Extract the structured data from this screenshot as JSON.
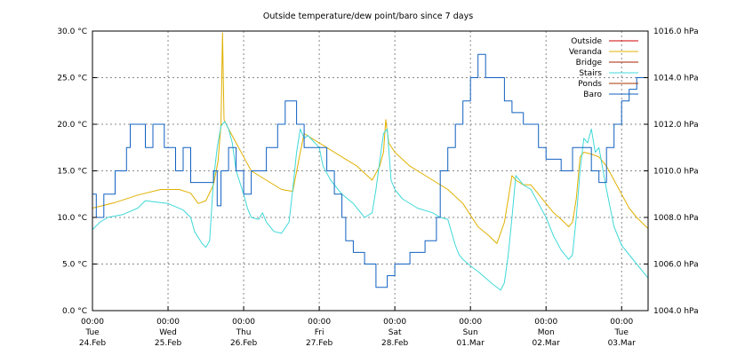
{
  "chart_data": {
    "type": "line",
    "title": "Outside temperature/dew point/baro since 7 days",
    "y_left": {
      "min": 0,
      "max": 30,
      "ticks": [
        "0.0 °C",
        "5.0 °C",
        "10.0 °C",
        "15.0 °C",
        "20.0 °C",
        "25.0 °C",
        "30.0 °C"
      ],
      "tick_values": [
        0,
        5,
        10,
        15,
        20,
        25,
        30
      ]
    },
    "y_right": {
      "min": 1004,
      "max": 1016,
      "ticks": [
        "1004.0 hPa",
        "1006.0 hPa",
        "1008.0 hPa",
        "1010.0 hPa",
        "1012.0 hPa",
        "1014.0 hPa",
        "1016.0 hPa"
      ],
      "tick_values": [
        1004,
        1006,
        1008,
        1010,
        1012,
        1014,
        1016
      ]
    },
    "x_axis": {
      "min": 0,
      "max": 7.35,
      "ticks": [
        {
          "t": 0,
          "time": "00:00",
          "day": "Tue",
          "date": "24.Feb"
        },
        {
          "t": 1,
          "time": "00:00",
          "day": "Wed",
          "date": "25.Feb"
        },
        {
          "t": 2,
          "time": "00:00",
          "day": "Thu",
          "date": "26.Feb"
        },
        {
          "t": 3,
          "time": "00:00",
          "day": "Fri",
          "date": "27.Feb"
        },
        {
          "t": 4,
          "time": "00:00",
          "day": "Sat",
          "date": "28.Feb"
        },
        {
          "t": 5,
          "time": "00:00",
          "day": "Sun",
          "date": "01.Mar"
        },
        {
          "t": 6,
          "time": "00:00",
          "day": "Mon",
          "date": "02.Mar"
        },
        {
          "t": 7,
          "time": "00:00",
          "day": "Tue",
          "date": "03.Mar"
        }
      ]
    },
    "grid": true,
    "legend_position": "top-right",
    "series": [
      {
        "name": "Outside",
        "color": "#d00000",
        "axis": "left",
        "points": []
      },
      {
        "name": "Veranda",
        "color": "#e0b000",
        "axis": "left",
        "points": [
          [
            0,
            11.0
          ],
          [
            0.3,
            11.6
          ],
          [
            0.6,
            12.4
          ],
          [
            0.9,
            13.0
          ],
          [
            1.15,
            13.0
          ],
          [
            1.3,
            12.6
          ],
          [
            1.4,
            11.5
          ],
          [
            1.5,
            11.8
          ],
          [
            1.6,
            13.5
          ],
          [
            1.66,
            16.0
          ],
          [
            1.7,
            20.0
          ],
          [
            1.72,
            29.8
          ],
          [
            1.74,
            20.5
          ],
          [
            1.8,
            19.5
          ],
          [
            1.9,
            18.0
          ],
          [
            2.0,
            16.5
          ],
          [
            2.1,
            15.0
          ],
          [
            2.3,
            14.0
          ],
          [
            2.5,
            13.0
          ],
          [
            2.65,
            12.8
          ],
          [
            2.75,
            17.0
          ],
          [
            2.8,
            19.0
          ],
          [
            2.9,
            18.5
          ],
          [
            3.0,
            18.0
          ],
          [
            3.1,
            17.5
          ],
          [
            3.3,
            16.5
          ],
          [
            3.5,
            15.5
          ],
          [
            3.7,
            14.0
          ],
          [
            3.8,
            15.5
          ],
          [
            3.85,
            17.0
          ],
          [
            3.88,
            20.5
          ],
          [
            3.92,
            18.0
          ],
          [
            4.0,
            17.0
          ],
          [
            4.2,
            15.5
          ],
          [
            4.5,
            14.0
          ],
          [
            4.7,
            13.0
          ],
          [
            4.9,
            11.5
          ],
          [
            5.1,
            9.0
          ],
          [
            5.25,
            8.0
          ],
          [
            5.35,
            7.2
          ],
          [
            5.45,
            9.5
          ],
          [
            5.5,
            12.0
          ],
          [
            5.55,
            14.5
          ],
          [
            5.6,
            14.0
          ],
          [
            5.7,
            13.5
          ],
          [
            5.8,
            13.5
          ],
          [
            5.9,
            12.5
          ],
          [
            6.0,
            11.5
          ],
          [
            6.1,
            10.5
          ],
          [
            6.2,
            9.8
          ],
          [
            6.3,
            9.0
          ],
          [
            6.35,
            9.5
          ],
          [
            6.4,
            12.0
          ],
          [
            6.45,
            16.5
          ],
          [
            6.5,
            17.0
          ],
          [
            6.6,
            16.8
          ],
          [
            6.7,
            16.5
          ],
          [
            6.8,
            15.5
          ],
          [
            6.9,
            14.0
          ],
          [
            7.0,
            12.5
          ],
          [
            7.1,
            11.0
          ],
          [
            7.2,
            10.0
          ],
          [
            7.35,
            8.8
          ]
        ]
      },
      {
        "name": "Bridge",
        "color": "#aa2200",
        "axis": "left",
        "points": []
      },
      {
        "name": "Stairs",
        "color": "#40d8d8",
        "axis": "left",
        "points": [
          [
            0,
            8.7
          ],
          [
            0.1,
            9.5
          ],
          [
            0.2,
            10.0
          ],
          [
            0.4,
            10.3
          ],
          [
            0.6,
            11.0
          ],
          [
            0.7,
            11.8
          ],
          [
            0.8,
            11.7
          ],
          [
            1.0,
            11.5
          ],
          [
            1.2,
            10.8
          ],
          [
            1.3,
            10.0
          ],
          [
            1.35,
            8.5
          ],
          [
            1.45,
            7.2
          ],
          [
            1.5,
            6.8
          ],
          [
            1.55,
            7.5
          ],
          [
            1.6,
            14.0
          ],
          [
            1.65,
            17.5
          ],
          [
            1.7,
            19.8
          ],
          [
            1.75,
            20.3
          ],
          [
            1.8,
            19.5
          ],
          [
            1.85,
            18.0
          ],
          [
            1.9,
            15.0
          ],
          [
            2.0,
            12.5
          ],
          [
            2.05,
            11.0
          ],
          [
            2.1,
            10.0
          ],
          [
            2.2,
            9.8
          ],
          [
            2.25,
            10.5
          ],
          [
            2.3,
            9.5
          ],
          [
            2.4,
            8.5
          ],
          [
            2.5,
            8.3
          ],
          [
            2.6,
            9.5
          ],
          [
            2.65,
            13.0
          ],
          [
            2.7,
            17.0
          ],
          [
            2.75,
            19.5
          ],
          [
            2.8,
            18.5
          ],
          [
            2.85,
            18.8
          ],
          [
            3.0,
            17.5
          ],
          [
            3.05,
            15.5
          ],
          [
            3.15,
            14.0
          ],
          [
            3.3,
            12.5
          ],
          [
            3.45,
            11.5
          ],
          [
            3.6,
            10.0
          ],
          [
            3.7,
            10.5
          ],
          [
            3.75,
            13.0
          ],
          [
            3.8,
            16.0
          ],
          [
            3.85,
            19.0
          ],
          [
            3.9,
            19.5
          ],
          [
            3.95,
            14.0
          ],
          [
            4.0,
            13.0
          ],
          [
            4.1,
            12.0
          ],
          [
            4.3,
            11.0
          ],
          [
            4.5,
            10.5
          ],
          [
            4.6,
            10.0
          ],
          [
            4.7,
            9.8
          ],
          [
            4.8,
            7.0
          ],
          [
            4.85,
            6.0
          ],
          [
            4.9,
            5.5
          ],
          [
            5.0,
            4.8
          ],
          [
            5.1,
            4.2
          ],
          [
            5.2,
            3.5
          ],
          [
            5.3,
            2.8
          ],
          [
            5.4,
            2.2
          ],
          [
            5.45,
            3.0
          ],
          [
            5.5,
            6.0
          ],
          [
            5.55,
            10.0
          ],
          [
            5.6,
            14.5
          ],
          [
            5.65,
            14.0
          ],
          [
            5.7,
            13.5
          ],
          [
            5.8,
            13.0
          ],
          [
            5.9,
            11.5
          ],
          [
            6.0,
            10.0
          ],
          [
            6.1,
            8.0
          ],
          [
            6.2,
            6.5
          ],
          [
            6.3,
            5.5
          ],
          [
            6.35,
            6.0
          ],
          [
            6.4,
            10.0
          ],
          [
            6.45,
            15.0
          ],
          [
            6.5,
            18.5
          ],
          [
            6.55,
            18.0
          ],
          [
            6.6,
            19.5
          ],
          [
            6.65,
            17.0
          ],
          [
            6.7,
            17.5
          ],
          [
            6.8,
            13.0
          ],
          [
            6.9,
            9.0
          ],
          [
            7.0,
            7.0
          ],
          [
            7.1,
            6.0
          ],
          [
            7.2,
            5.0
          ],
          [
            7.35,
            3.5
          ]
        ]
      },
      {
        "name": "Ponds",
        "color": "#aa3300",
        "axis": "left",
        "points": []
      },
      {
        "name": "Baro",
        "color": "#1060c0",
        "axis": "right",
        "points": [
          [
            0,
            1009.0
          ],
          [
            0.05,
            1008.0
          ],
          [
            0.15,
            1009.0
          ],
          [
            0.3,
            1010.0
          ],
          [
            0.45,
            1011.0
          ],
          [
            0.5,
            1012.0
          ],
          [
            0.7,
            1011.0
          ],
          [
            0.8,
            1012.0
          ],
          [
            0.95,
            1011.0
          ],
          [
            1.1,
            1010.0
          ],
          [
            1.2,
            1011.0
          ],
          [
            1.3,
            1009.5
          ],
          [
            1.5,
            1009.5
          ],
          [
            1.6,
            1010.0
          ],
          [
            1.65,
            1008.5
          ],
          [
            1.7,
            1010.0
          ],
          [
            1.8,
            1011.0
          ],
          [
            1.9,
            1010.0
          ],
          [
            2.0,
            1009.0
          ],
          [
            2.1,
            1010.0
          ],
          [
            2.3,
            1011.0
          ],
          [
            2.45,
            1012.0
          ],
          [
            2.55,
            1013.0
          ],
          [
            2.7,
            1012.0
          ],
          [
            2.8,
            1011.0
          ],
          [
            3.0,
            1011.0
          ],
          [
            3.1,
            1010.0
          ],
          [
            3.2,
            1009.0
          ],
          [
            3.3,
            1008.0
          ],
          [
            3.35,
            1007.0
          ],
          [
            3.45,
            1006.5
          ],
          [
            3.6,
            1006.0
          ],
          [
            3.75,
            1005.0
          ],
          [
            3.9,
            1005.5
          ],
          [
            4.0,
            1006.0
          ],
          [
            4.2,
            1006.5
          ],
          [
            4.4,
            1007.0
          ],
          [
            4.55,
            1008.0
          ],
          [
            4.6,
            1010.0
          ],
          [
            4.7,
            1011.0
          ],
          [
            4.8,
            1012.0
          ],
          [
            4.9,
            1013.0
          ],
          [
            5.0,
            1014.0
          ],
          [
            5.1,
            1015.0
          ],
          [
            5.2,
            1014.0
          ],
          [
            5.35,
            1014.0
          ],
          [
            5.45,
            1013.0
          ],
          [
            5.55,
            1012.5
          ],
          [
            5.7,
            1012.0
          ],
          [
            5.9,
            1011.0
          ],
          [
            6.0,
            1010.5
          ],
          [
            6.2,
            1010.0
          ],
          [
            6.35,
            1011.0
          ],
          [
            6.5,
            1011.0
          ],
          [
            6.6,
            1010.0
          ],
          [
            6.7,
            1009.5
          ],
          [
            6.8,
            1011.0
          ],
          [
            6.9,
            1012.0
          ],
          [
            7.0,
            1013.0
          ],
          [
            7.1,
            1013.5
          ],
          [
            7.2,
            1014.0
          ],
          [
            7.35,
            1014.0
          ]
        ]
      }
    ]
  }
}
